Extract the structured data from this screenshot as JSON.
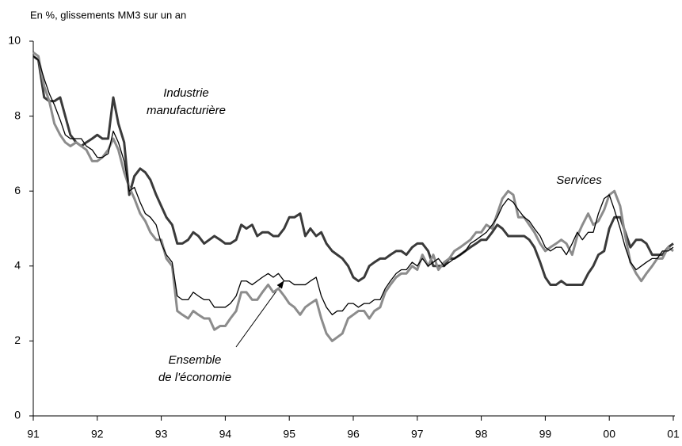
{
  "chart_data": {
    "type": "line",
    "subtitle": "En %, glissements MM3 sur un an",
    "annotations": [
      [
        "Industrie",
        "manufacturière"
      ],
      [
        "Services"
      ],
      [
        "Ensemble",
        "de l'économie"
      ]
    ],
    "x": [
      1991,
      1991.08,
      1991.17,
      1991.25,
      1991.33,
      1991.42,
      1991.5,
      1991.58,
      1991.67,
      1991.75,
      1991.83,
      1991.92,
      1992,
      1992.08,
      1992.17,
      1992.25,
      1992.33,
      1992.42,
      1992.5,
      1992.58,
      1992.67,
      1992.75,
      1992.83,
      1992.92,
      1993,
      1993.08,
      1993.17,
      1993.25,
      1993.33,
      1993.42,
      1993.5,
      1993.58,
      1993.67,
      1993.75,
      1993.83,
      1993.92,
      1994,
      1994.08,
      1994.17,
      1994.25,
      1994.33,
      1994.42,
      1994.5,
      1994.58,
      1994.67,
      1994.75,
      1994.83,
      1994.92,
      1995,
      1995.08,
      1995.17,
      1995.25,
      1995.33,
      1995.42,
      1995.5,
      1995.58,
      1995.67,
      1995.75,
      1995.83,
      1995.92,
      1996,
      1996.08,
      1996.17,
      1996.25,
      1996.33,
      1996.42,
      1996.5,
      1996.58,
      1996.67,
      1996.75,
      1996.83,
      1996.92,
      1997,
      1997.08,
      1997.17,
      1997.25,
      1997.33,
      1997.42,
      1997.5,
      1997.58,
      1997.67,
      1997.75,
      1997.83,
      1997.92,
      1998,
      1998.08,
      1998.17,
      1998.25,
      1998.33,
      1998.42,
      1998.5,
      1998.58,
      1998.67,
      1998.75,
      1998.83,
      1998.92,
      1999,
      1999.08,
      1999.17,
      1999.25,
      1999.33,
      1999.42,
      1999.5,
      1999.58,
      1999.67,
      1999.75,
      1999.83,
      1999.92,
      2000,
      2000.08,
      2000.17,
      2000.25,
      2000.33,
      2000.42,
      2000.5,
      2000.58,
      2000.67,
      2000.75,
      2000.83,
      2000.92,
      2001
    ],
    "series": [
      {
        "name": "Industrie manufacturière",
        "color": "#3a3a3a",
        "width": 3,
        "values": [
          9.6,
          9.5,
          8.5,
          8.4,
          8.4,
          8.5,
          8.0,
          7.5,
          7.3,
          7.2,
          7.3,
          7.4,
          7.5,
          7.4,
          7.4,
          8.5,
          7.8,
          7.3,
          5.9,
          6.4,
          6.6,
          6.5,
          6.3,
          5.9,
          5.6,
          5.3,
          5.1,
          4.6,
          4.6,
          4.7,
          4.9,
          4.8,
          4.6,
          4.7,
          4.8,
          4.7,
          4.6,
          4.6,
          4.7,
          5.1,
          5.0,
          5.1,
          4.8,
          4.9,
          4.9,
          4.8,
          4.8,
          5.0,
          5.3,
          5.3,
          5.4,
          4.8,
          5.0,
          4.8,
          4.9,
          4.6,
          4.4,
          4.3,
          4.2,
          4.0,
          3.7,
          3.6,
          3.7,
          4.0,
          4.1,
          4.2,
          4.2,
          4.3,
          4.4,
          4.4,
          4.3,
          4.5,
          4.6,
          4.6,
          4.4,
          4.0,
          4.0,
          4.0,
          4.2,
          4.2,
          4.3,
          4.4,
          4.5,
          4.6,
          4.7,
          4.7,
          4.9,
          5.1,
          5.0,
          4.8,
          4.8,
          4.8,
          4.8,
          4.7,
          4.5,
          4.1,
          3.7,
          3.5,
          3.5,
          3.6,
          3.5,
          3.5,
          3.5,
          3.5,
          3.8,
          4.0,
          4.3,
          4.4,
          5.0,
          5.3,
          5.3,
          4.9,
          4.5,
          4.7,
          4.7,
          4.6,
          4.3,
          4.3,
          4.3,
          4.5,
          4.6
        ]
      },
      {
        "name": "Ensemble de l'économie",
        "color": "#000000",
        "width": 1.3,
        "values": [
          9.6,
          9.5,
          9.0,
          8.6,
          8.3,
          7.9,
          7.5,
          7.4,
          7.4,
          7.4,
          7.2,
          7.1,
          6.9,
          6.9,
          7.0,
          7.6,
          7.3,
          6.8,
          6.0,
          6.1,
          5.7,
          5.4,
          5.3,
          5.1,
          4.6,
          4.3,
          4.1,
          3.2,
          3.1,
          3.1,
          3.3,
          3.2,
          3.1,
          3.1,
          2.9,
          2.9,
          2.9,
          3.0,
          3.2,
          3.6,
          3.6,
          3.5,
          3.6,
          3.7,
          3.8,
          3.7,
          3.8,
          3.6,
          3.6,
          3.5,
          3.5,
          3.5,
          3.6,
          3.7,
          3.2,
          2.9,
          2.7,
          2.8,
          2.8,
          3.0,
          3.0,
          2.9,
          3.0,
          3.0,
          3.1,
          3.1,
          3.4,
          3.6,
          3.8,
          3.9,
          3.9,
          4.1,
          4.0,
          4.2,
          4.0,
          4.1,
          4.2,
          4.0,
          4.1,
          4.2,
          4.3,
          4.4,
          4.6,
          4.7,
          4.8,
          4.9,
          5.1,
          5.3,
          5.6,
          5.8,
          5.7,
          5.5,
          5.3,
          5.2,
          5.0,
          4.8,
          4.5,
          4.4,
          4.5,
          4.5,
          4.3,
          4.6,
          4.9,
          4.7,
          4.9,
          4.9,
          5.4,
          5.8,
          5.9,
          5.5,
          5.0,
          4.5,
          4.1,
          3.9,
          4.0,
          4.1,
          4.2,
          4.2,
          4.4,
          4.4,
          4.5
        ]
      },
      {
        "name": "Services",
        "color": "#8c8c8c",
        "width": 3,
        "values": [
          9.7,
          9.6,
          8.8,
          8.4,
          7.8,
          7.5,
          7.3,
          7.2,
          7.3,
          7.2,
          7.1,
          6.8,
          6.8,
          6.9,
          7.1,
          7.4,
          7.1,
          6.5,
          6.1,
          5.8,
          5.4,
          5.2,
          4.9,
          4.7,
          4.7,
          4.2,
          4.0,
          2.8,
          2.7,
          2.6,
          2.8,
          2.7,
          2.6,
          2.6,
          2.3,
          2.4,
          2.4,
          2.6,
          2.8,
          3.3,
          3.3,
          3.1,
          3.1,
          3.3,
          3.5,
          3.3,
          3.4,
          3.2,
          3.0,
          2.9,
          2.7,
          2.9,
          3.0,
          3.1,
          2.6,
          2.2,
          2.0,
          2.1,
          2.2,
          2.6,
          2.7,
          2.8,
          2.8,
          2.6,
          2.8,
          2.9,
          3.3,
          3.5,
          3.7,
          3.8,
          3.8,
          4.0,
          3.9,
          4.3,
          4.0,
          4.3,
          3.9,
          4.1,
          4.2,
          4.4,
          4.5,
          4.6,
          4.7,
          4.9,
          4.9,
          5.1,
          5.0,
          5.4,
          5.8,
          6.0,
          5.9,
          5.3,
          5.3,
          5.1,
          4.9,
          4.6,
          4.4,
          4.5,
          4.6,
          4.7,
          4.6,
          4.3,
          4.8,
          5.1,
          5.4,
          5.1,
          5.2,
          5.5,
          5.9,
          6.0,
          5.6,
          4.8,
          4.1,
          3.8,
          3.6,
          3.8,
          4.0,
          4.2,
          4.2,
          4.5,
          4.4
        ]
      }
    ],
    "xlim": [
      1991,
      2001
    ],
    "xticks": [
      {
        "value": 1991,
        "label": "91"
      },
      {
        "value": 1992,
        "label": "92"
      },
      {
        "value": 1993,
        "label": "93"
      },
      {
        "value": 1994,
        "label": "94"
      },
      {
        "value": 1995,
        "label": "95"
      },
      {
        "value": 1996,
        "label": "96"
      },
      {
        "value": 1997,
        "label": "97"
      },
      {
        "value": 1998,
        "label": "98"
      },
      {
        "value": 1999,
        "label": "99"
      },
      {
        "value": 2000,
        "label": "00"
      },
      {
        "value": 2001,
        "label": "01"
      }
    ],
    "ylim": [
      0,
      10
    ],
    "yticks": [
      0,
      2,
      4,
      6,
      8,
      10
    ],
    "grid": false
  }
}
